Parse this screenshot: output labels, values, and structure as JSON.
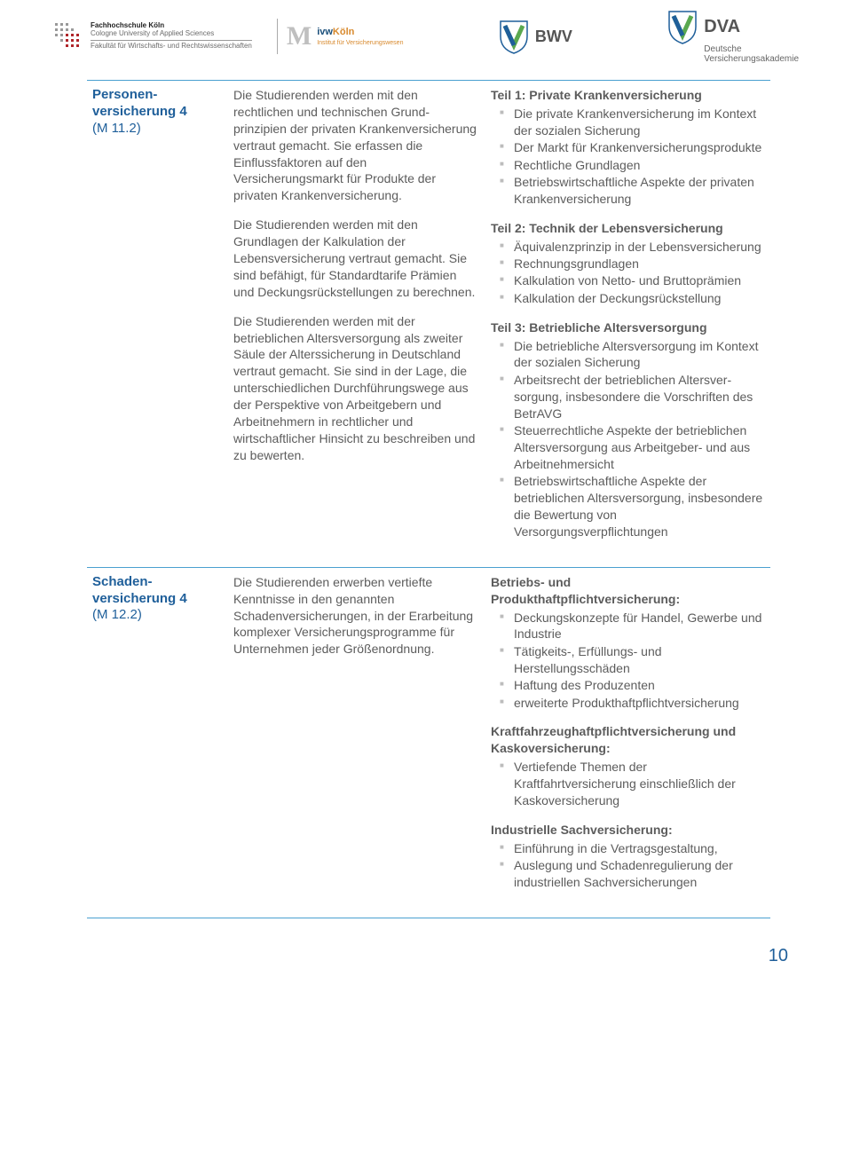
{
  "header": {
    "fh_line1": "Fachhochschule Köln",
    "fh_line2": "Cologne University of Applied Sciences",
    "fh_line3": "Fakultät für Wirtschafts- und Rechtswissenschaften",
    "ivw_brand": "ivwKöln",
    "ivw_sub": "Institut für Versicherungswesen",
    "bwv": "BWV",
    "dva": "DVA",
    "dva_sub1": "Deutsche",
    "dva_sub2": "Versicherungsakademie"
  },
  "rows": [
    {
      "name1": "Personen-",
      "name2": "versicherung 4",
      "code": "(M 11.2)",
      "paras": [
        "Die Studierenden werden mit den rechtlichen und technischen Grund­prinzipien der privaten Kranken­versicherung vertraut gemacht. Sie erfassen die Einflussfaktoren auf den Versicherungsmarkt für Produkte der privaten Krankenversicherung.",
        "Die Studierenden werden mit den Grundlagen der Kalkulation der Lebensversicherung vertraut gemacht. Sie sind befähigt, für Standardtarife Prämien und Deckungsrückstellungen zu berechnen.",
        "Die Studierenden werden mit der betrieblichen Altersversorgung als zweiter Säule der Alterssicherung in Deutschland vertraut gemacht. Sie sind in der Lage, die unterschied­lichen Durchführungswege aus der Perspektive von Arbeitgebern und Arbeitnehmern in rechtlicher und wirtschaftlicher Hinsicht zu beschreiben und zu bewerten."
      ],
      "sections": [
        {
          "head": "Teil 1: Private Krankenversicherung",
          "items": [
            "Die private Krankenversicherung im Kontext der sozialen Sicherung",
            "Der Markt für Krankenversicherungsprodukte",
            "Rechtliche Grundlagen",
            "Betriebswirtschaftliche Aspekte der privaten Krankenversicherung"
          ]
        },
        {
          "head": "Teil 2: Technik der Lebensversicherung",
          "items": [
            "Äquivalenzprinzip in der Lebensversicherung",
            "Rechnungsgrundlagen",
            "Kalkulation von Netto- und Bruttoprämien",
            "Kalkulation der Deckungsrückstellung"
          ]
        },
        {
          "head": "Teil 3: Betriebliche Altersversorgung",
          "items": [
            "Die betriebliche Altersversorgung im Kontext der sozialen Sicherung",
            "Arbeitsrecht der betrieblichen Altersver-sorgung, insbesondere die Vorschriften des BetrAVG",
            "Steuerrechtliche Aspekte der betrieblichen Altersversorgung aus Arbeitgeber- und aus Arbeitnehmersicht",
            "Betriebswirtschaftliche Aspekte der betrieblichen Altersversorgung, insbesondere die Bewertung von Versorgungsverpflichtungen"
          ]
        }
      ]
    },
    {
      "name1": "Schaden-",
      "name2": "versicherung 4",
      "code": "(M 12.2)",
      "paras": [
        "Die Studierenden erwerben vertiefte Kenntnisse in den genannten Schadenversicherungen, in der Erarbeitung komplexer Versicherungsprogramme für Unternehmen jeder Größenordnung."
      ],
      "sections": [
        {
          "head": "Betriebs- und Produkthaftpflichtversicherung:",
          "items": [
            "Deckungskonzepte für Handel, Gewerbe und Industrie",
            "Tätigkeits-, Erfüllungs- und Herstellungsschäden",
            "Haftung des Produzenten",
            "erweiterte Produkthaftpflichtversicherung"
          ]
        },
        {
          "head": "Kraftfahrzeughaftpflichtversicherung und Kaskoversicherung:",
          "items": [
            "Vertiefende Themen der Kraftfahrtversicherung einschließlich der Kaskoversicherung"
          ]
        },
        {
          "head": "Industrielle Sachversicherung:",
          "items": [
            "Einführung in die Vertragsgestaltung,",
            "Auslegung und Schadenregulierung der industriellen Sachversicherungen"
          ]
        }
      ]
    }
  ],
  "page_number": "10"
}
